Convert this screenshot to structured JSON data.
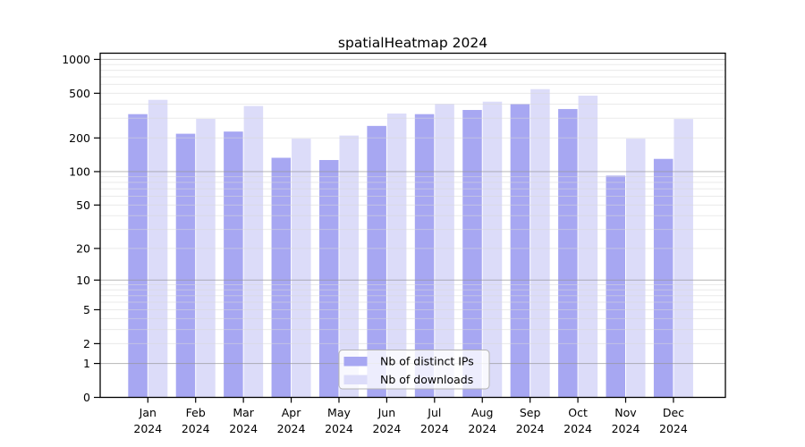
{
  "chart_data": {
    "type": "bar",
    "title": "spatialHeatmap 2024",
    "categories": [
      "Jan 2024",
      "Feb 2024",
      "Mar 2024",
      "Apr 2024",
      "May 2024",
      "Jun 2024",
      "Jul 2024",
      "Aug 2024",
      "Sep 2024",
      "Oct 2024",
      "Nov 2024",
      "Dec 2024"
    ],
    "series": [
      {
        "name": "Nb of distinct IPs",
        "color": "#a7a7f2",
        "values": [
          326,
          218,
          228,
          133,
          127,
          256,
          326,
          355,
          402,
          362,
          92,
          130
        ]
      },
      {
        "name": "Nb of downloads",
        "color": "#dcdcf9",
        "values": [
          437,
          296,
          385,
          197,
          210,
          330,
          402,
          421,
          544,
          476,
          197,
          295
        ]
      }
    ],
    "xlabel": "",
    "ylabel": "",
    "yscale": "log10(value+1)",
    "yticks": [
      0,
      1,
      2,
      5,
      10,
      20,
      50,
      100,
      200,
      500,
      1000
    ],
    "ylim": [
      0,
      1140
    ],
    "grid": true,
    "legend_position": "inside-bottom-center"
  },
  "colors": {
    "background": "#ffffff",
    "axis": "#000000",
    "grid_minor": "rgba(216,216,216,0.55)",
    "grid_major": "rgba(148,148,148,0.60)",
    "legend_fill": "rgba(255,255,255,0.80)",
    "legend_border": "#b3b3b3",
    "text": "#000000"
  }
}
